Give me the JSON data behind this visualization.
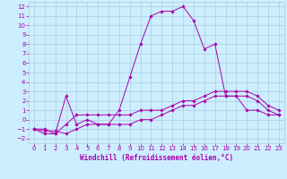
{
  "title": "",
  "xlabel": "Windchill (Refroidissement éolien,°C)",
  "ylabel": "",
  "bg_color": "#cceeff",
  "grid_color": "#aaccdd",
  "line_color": "#aa00aa",
  "xlim": [
    -0.5,
    23.5
  ],
  "ylim": [
    -2.5,
    12.5
  ],
  "xticks": [
    0,
    1,
    2,
    3,
    4,
    5,
    6,
    7,
    8,
    9,
    10,
    11,
    12,
    13,
    14,
    15,
    16,
    17,
    18,
    19,
    20,
    21,
    22,
    23
  ],
  "yticks": [
    -2,
    -1,
    0,
    1,
    2,
    3,
    4,
    5,
    6,
    7,
    8,
    9,
    10,
    11,
    12
  ],
  "series": [
    [
      -1,
      -1,
      -1.5,
      2.5,
      -0.5,
      0,
      -0.5,
      -0.5,
      1,
      4.5,
      8,
      11,
      11.5,
      11.5,
      12,
      10.5,
      7.5,
      8,
      2.5,
      2.5,
      1,
      1,
      0.5,
      0.5
    ],
    [
      -1,
      -1.5,
      -1.5,
      -0.5,
      0.5,
      0.5,
      0.5,
      0.5,
      0.5,
      0.5,
      1.0,
      1.0,
      1.0,
      1.5,
      2.0,
      2.0,
      2.5,
      3.0,
      3.0,
      3.0,
      3.0,
      2.5,
      1.5,
      1.0
    ],
    [
      -1,
      -1.2,
      -1.2,
      -1.5,
      -1.0,
      -0.5,
      -0.5,
      -0.5,
      -0.5,
      -0.5,
      0.0,
      0.0,
      0.5,
      1.0,
      1.5,
      1.5,
      2.0,
      2.5,
      2.5,
      2.5,
      2.5,
      2.0,
      1.0,
      0.5
    ]
  ],
  "xlabel_fontsize": 5.5,
  "tick_fontsize": 5,
  "linewidth": 0.7,
  "markersize": 1.8
}
